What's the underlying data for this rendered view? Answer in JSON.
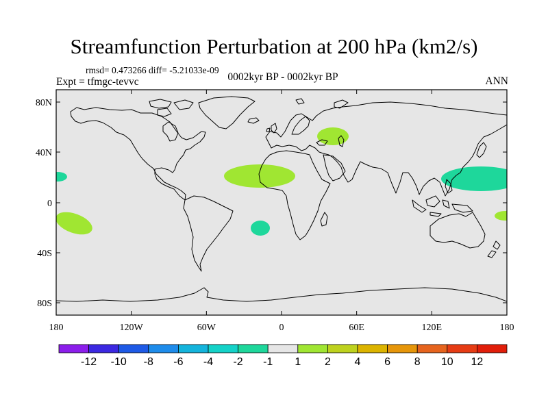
{
  "header": {
    "title": "Streamfunction Perturbation at 200 hPa (km2/s)",
    "stats": "rmsd= 0.473266 diff= -5.21033e-09",
    "experiment": "Expt = tfmgc-tevvc",
    "period": "0002kyr BP - 0002kyr BP",
    "season": "ANN"
  },
  "map": {
    "projection": "cylindrical equidistant",
    "background_color": "#e6e6e6",
    "lat_ticks": [
      "80N",
      "40N",
      "0",
      "40S",
      "80S"
    ],
    "lon_ticks": [
      "180",
      "120W",
      "60W",
      "0",
      "60E",
      "120E",
      "180"
    ],
    "anomalies": [
      {
        "region": "Black Sea / Caucasus",
        "level": "1 to 2",
        "color": "#a0e632"
      },
      {
        "region": "Tropical North Atlantic / West Africa",
        "level": "1 to 2",
        "color": "#a0e632"
      },
      {
        "region": "Western North Pacific",
        "level": "-2 to -1",
        "color": "#1ed79b"
      },
      {
        "region": "Eastern North Pacific (edge)",
        "level": "-2 to -1",
        "color": "#1ed79b"
      },
      {
        "region": "Subtropical South Pacific",
        "level": "1 to 2",
        "color": "#a0e632"
      },
      {
        "region": "South Atlantic",
        "level": "-2 to -1",
        "color": "#1ed79b"
      },
      {
        "region": "Northwest Australia (edge)",
        "level": "1 to 2",
        "color": "#a0e632"
      }
    ]
  },
  "colorbar": {
    "labels": [
      "-12",
      "-10",
      "-8",
      "-6",
      "-4",
      "-2",
      "-1",
      "1",
      "2",
      "4",
      "6",
      "8",
      "10",
      "12"
    ],
    "colors": [
      "#8c1eeb",
      "#3c28e1",
      "#1e5ae6",
      "#1e8ceb",
      "#14b4dc",
      "#14d2c8",
      "#1ed79b",
      "#e6e6e6",
      "#a0e632",
      "#bed21e",
      "#dcb400",
      "#e6960a",
      "#e6641e",
      "#e63c14",
      "#e11e0a"
    ]
  }
}
